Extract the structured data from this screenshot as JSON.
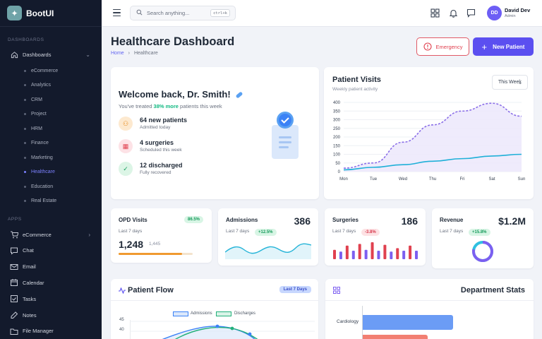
{
  "brand": {
    "name": "BootUI"
  },
  "sidebar": {
    "section_dashboards": "DASHBOARDS",
    "dashboards_label": "Dashboards",
    "sub_items": [
      "eCommerce",
      "Analytics",
      "CRM",
      "Project",
      "HRM",
      "Finance",
      "Marketing",
      "Healthcare",
      "Education",
      "Real Estate"
    ],
    "active_sub": "Healthcare",
    "section_apps": "APPS",
    "apps": [
      {
        "label": "eCommerce",
        "icon": "cart-icon"
      },
      {
        "label": "Chat",
        "icon": "chat-icon"
      },
      {
        "label": "Email",
        "icon": "mail-icon"
      },
      {
        "label": "Calendar",
        "icon": "calendar-icon"
      },
      {
        "label": "Tasks",
        "icon": "tasks-icon"
      },
      {
        "label": "Notes",
        "icon": "notes-icon"
      },
      {
        "label": "File Manager",
        "icon": "folder-icon"
      }
    ]
  },
  "topbar": {
    "search_placeholder": "Search anything...",
    "search_shortcut": "ctrl+k",
    "user": {
      "initials": "DD",
      "name": "David Dev",
      "role": "Admin"
    }
  },
  "page": {
    "title": "Healthcare Dashboard",
    "breadcrumb_home": "Home",
    "breadcrumb_sep": "›",
    "breadcrumb_current": "Healthcare",
    "emergency_label": "Emergency",
    "new_patient_label": "New Patient"
  },
  "welcome": {
    "title": "Welcome back, Dr. Smith!",
    "subtitle_pre": "You've treated ",
    "subtitle_highlight": "38% more",
    "subtitle_post": " patients this week",
    "rows": [
      {
        "title": "64 new patients",
        "sub": "Admitted today",
        "icon": "user-plus-icon",
        "color": "#fde9cf",
        "fg": "#e88a1a"
      },
      {
        "title": "4 surgeries",
        "sub": "Scheduled this week",
        "icon": "calendar-icon",
        "color": "#fde2e6",
        "fg": "#e0414f"
      },
      {
        "title": "12 discharged",
        "sub": "Fully recovered",
        "icon": "check-circle-icon",
        "color": "#dcf5e6",
        "fg": "#17a05c"
      }
    ]
  },
  "patient_visits": {
    "title": "Patient Visits",
    "subtitle": "Weekly patient activity",
    "period": "This Week",
    "chart_data": {
      "type": "line",
      "categories": [
        "Mon",
        "Tue",
        "Wed",
        "Thu",
        "Fri",
        "Sat",
        "Sun"
      ],
      "ylim": [
        0,
        400
      ],
      "yticks": [
        0,
        50,
        100,
        150,
        200,
        250,
        300,
        350,
        400
      ],
      "series": [
        {
          "values": [
            20,
            50,
            170,
            270,
            350,
            395,
            320
          ],
          "color": "#8b6fe8",
          "style": "dashed",
          "fill": true
        },
        {
          "values": [
            10,
            25,
            40,
            60,
            75,
            90,
            100
          ],
          "color": "#1fb0d8",
          "style": "solid",
          "fill": false
        }
      ]
    }
  },
  "stats": {
    "opd": {
      "title": "OPD Visits",
      "badge": "86.5%",
      "period": "Last 7 days",
      "value": "1,248",
      "secondary": "1,445",
      "progress": 0.86
    },
    "admissions": {
      "title": "Admissions",
      "value": "386",
      "period": "Last 7 days",
      "badge": "+12.5%"
    },
    "surgeries": {
      "title": "Surgeries",
      "value": "186",
      "period": "Last 7 days",
      "badge": "-3.8%",
      "chart_data": {
        "type": "bar",
        "values": [
          55,
          45,
          80,
          50,
          90,
          55,
          100,
          50,
          85,
          45,
          65,
          50,
          80,
          50
        ],
        "colors": [
          "#e0414f",
          "#7c5ff0"
        ]
      }
    },
    "revenue": {
      "title": "Revenue",
      "value": "$1.2M",
      "period": "Last 7 days",
      "badge": "+15.8%",
      "donut_fraction": 0.78
    }
  },
  "patient_flow": {
    "title": "Patient Flow",
    "badge": "Last 7 Days",
    "legend": [
      "Admissions",
      "Discharges"
    ],
    "yticks": [
      "45",
      "40"
    ]
  },
  "department_stats": {
    "title": "Department Stats",
    "chart_data": {
      "type": "bar",
      "categories": [
        "Cardiology"
      ],
      "values": [
        0.8
      ],
      "colors": [
        "#6b9cf5",
        "#f27f72"
      ]
    }
  }
}
